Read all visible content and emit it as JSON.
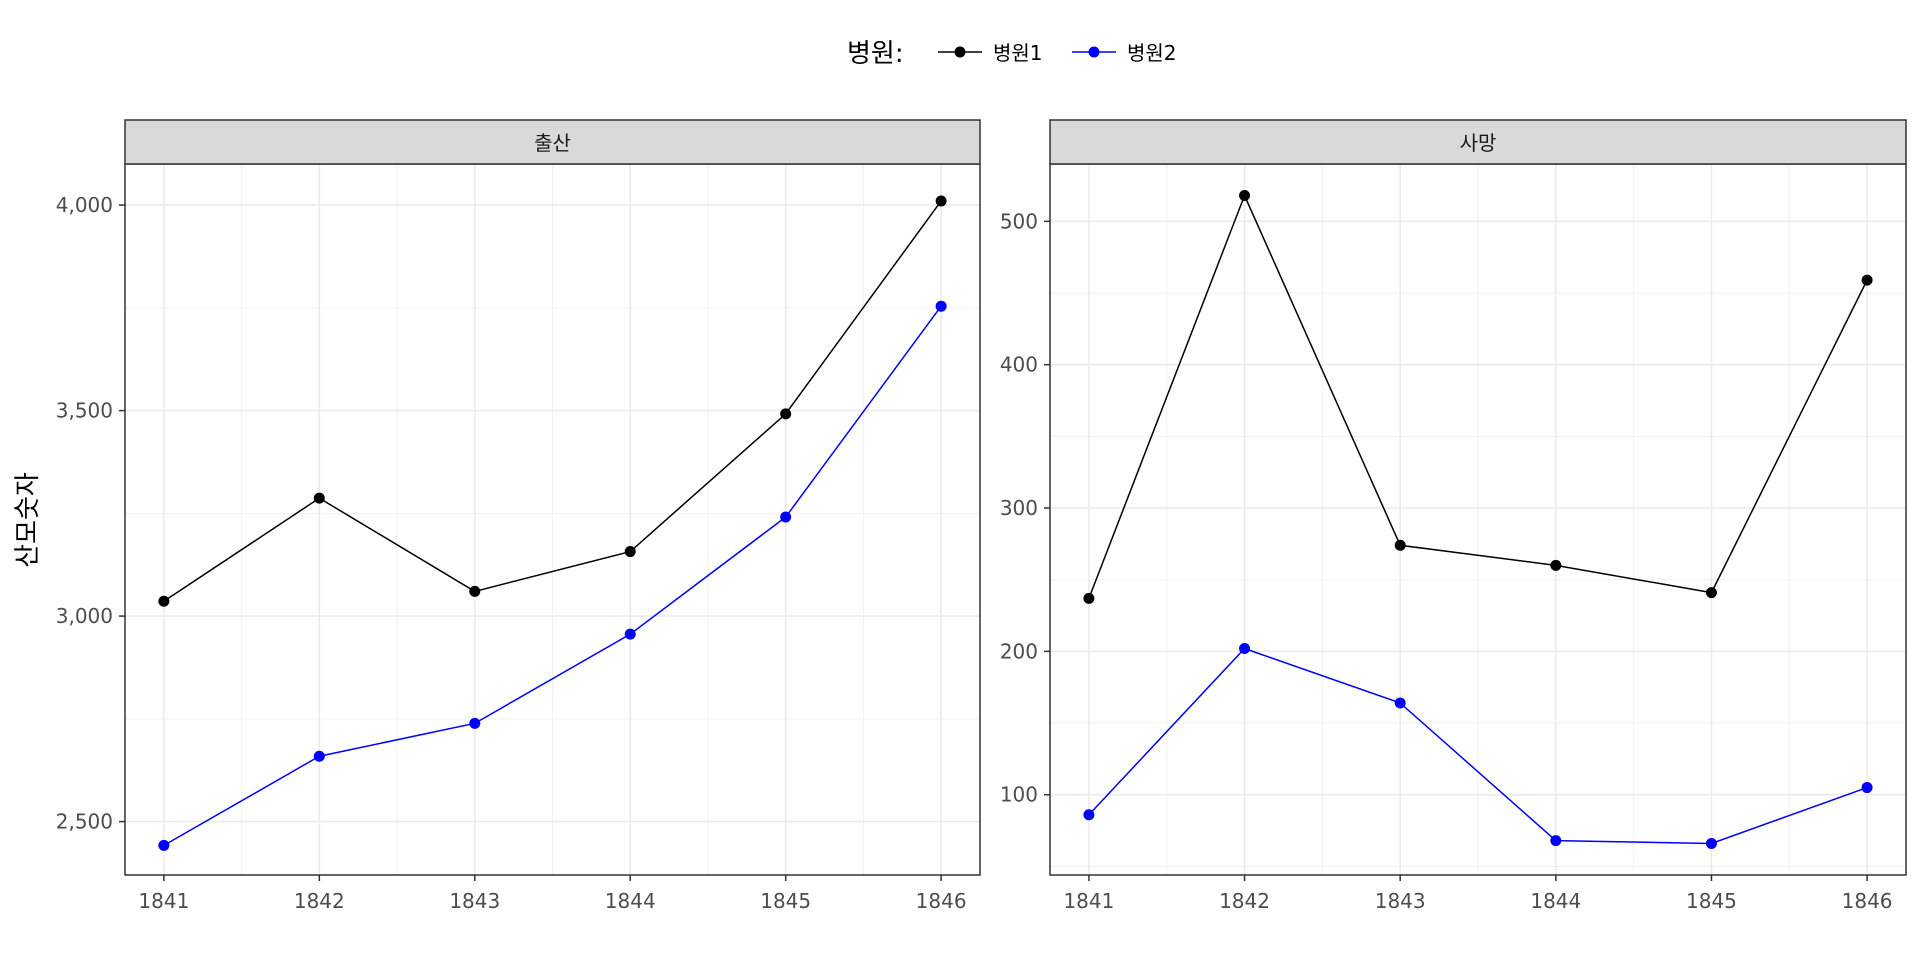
{
  "chart_data": {
    "type": "line",
    "ylabel": "산모숫자",
    "legend": {
      "title": "병원:",
      "placement": "top",
      "entries": [
        {
          "label": "병원1",
          "color": "#000000"
        },
        {
          "label": "병원2",
          "color": "#0000ff"
        }
      ]
    },
    "grid": true,
    "x": [
      1841,
      1842,
      1843,
      1844,
      1845,
      1846
    ],
    "panels": [
      {
        "strip": "출산",
        "ylim": [
          2370,
          4100
        ],
        "yticks": [
          2500,
          3000,
          3500,
          4000
        ],
        "ytick_labels": [
          "2,500",
          "3,000",
          "3,500",
          "4,000"
        ],
        "series": [
          {
            "name": "병원1",
            "color": "#000000",
            "values": [
              3036,
              3287,
              3060,
              3157,
              3492,
              4010
            ]
          },
          {
            "name": "병원2",
            "color": "#0000ff",
            "values": [
              2442,
              2659,
              2739,
              2956,
              3241,
              3754
            ]
          }
        ]
      },
      {
        "strip": "사망",
        "ylim": [
          44,
          540
        ],
        "yticks": [
          100,
          200,
          300,
          400,
          500
        ],
        "ytick_labels": [
          "100",
          "200",
          "300",
          "400",
          "500"
        ],
        "series": [
          {
            "name": "병원1",
            "color": "#000000",
            "values": [
              237,
              518,
              274,
              260,
              241,
              459
            ]
          },
          {
            "name": "병원2",
            "color": "#0000ff",
            "values": [
              86,
              202,
              164,
              68,
              66,
              105
            ]
          }
        ]
      }
    ]
  }
}
